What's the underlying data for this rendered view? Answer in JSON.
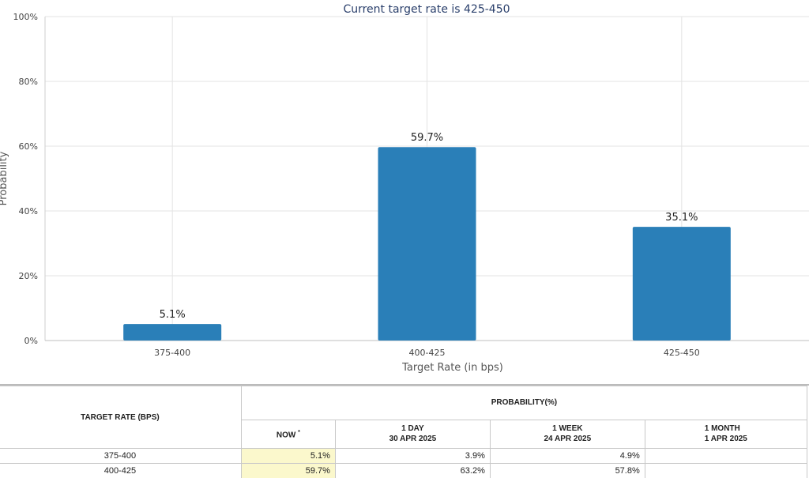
{
  "chart_data": {
    "type": "bar",
    "title": "Current target rate is 425-450",
    "xlabel": "Target Rate (in bps)",
    "ylabel": "Probability",
    "categories": [
      "375-400",
      "400-425",
      "425-450"
    ],
    "values": [
      5.1,
      59.7,
      35.1
    ],
    "value_labels": [
      "5.1%",
      "59.7%",
      "35.1%"
    ],
    "ylim": [
      0,
      100
    ],
    "yticks": [
      "0%",
      "20%",
      "40%",
      "60%",
      "80%",
      "100%"
    ],
    "grid": true,
    "bar_color": "#2a7fb8"
  },
  "table": {
    "target_header": "TARGET RATE (BPS)",
    "prob_header": "PROBABILITY(%)",
    "columns": [
      {
        "line1": "NOW",
        "line2": "",
        "marker": "*"
      },
      {
        "line1": "1 DAY",
        "line2": "30 APR 2025",
        "marker": ""
      },
      {
        "line1": "1 WEEK",
        "line2": "24 APR 2025",
        "marker": ""
      },
      {
        "line1": "1 MONTH",
        "line2": "1 APR 2025",
        "marker": ""
      }
    ],
    "rows": [
      {
        "rate": "375-400",
        "values": [
          "5.1%",
          "3.9%",
          "4.9%",
          ""
        ]
      },
      {
        "rate": "400-425",
        "values": [
          "59.7%",
          "63.2%",
          "57.8%",
          ""
        ]
      }
    ]
  }
}
